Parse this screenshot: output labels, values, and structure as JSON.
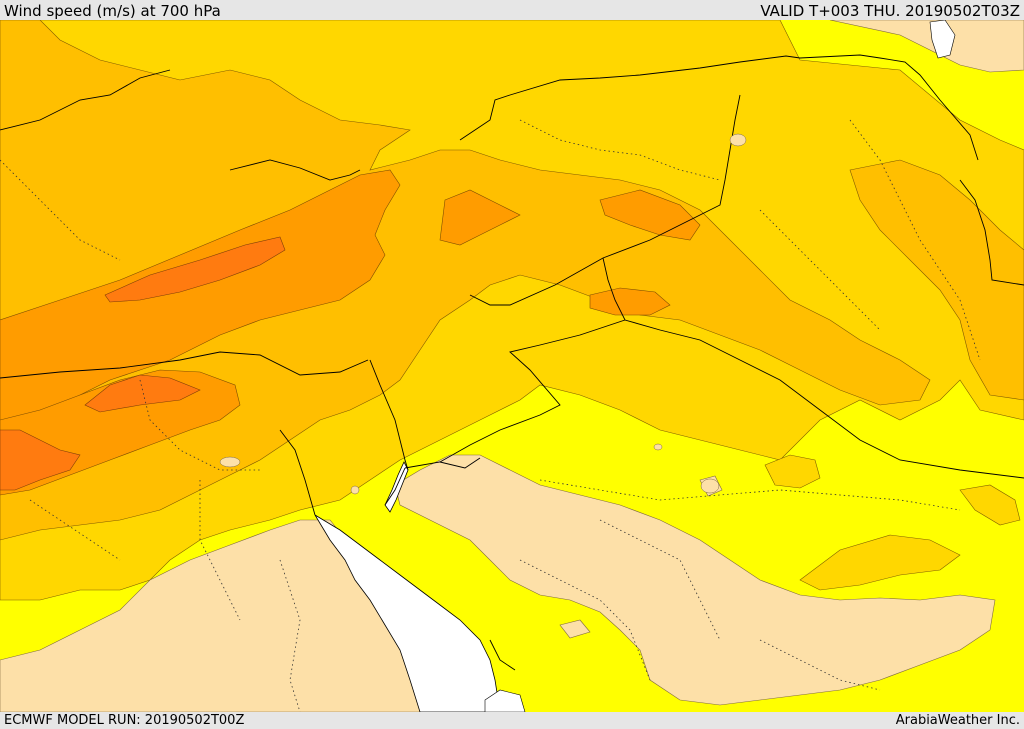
{
  "header": {
    "title": "Wind speed (m/s) at 700 hPa",
    "valid": "VALID T+003 THU. 20190502T03Z"
  },
  "footer": {
    "model_run": "ECMWF MODEL RUN: 20190502T00Z",
    "credit": "ArabiaWeather Inc."
  },
  "colors": {
    "very_low": "#fde0a8",
    "low": "#ffff00",
    "moderate": "#ffd700",
    "fresh": "#ffbf00",
    "strong": "#ff9c00",
    "very_strong": "#ff7b10",
    "sea": "#ffffff",
    "border": "#000000"
  }
}
